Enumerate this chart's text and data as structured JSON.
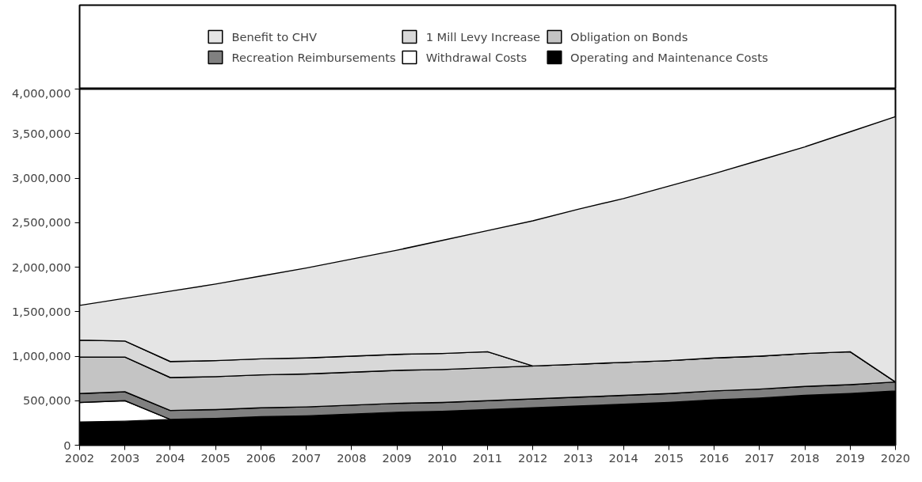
{
  "chart_data": {
    "type": "area",
    "stacked": true,
    "x": [
      2002,
      2003,
      2004,
      2005,
      2006,
      2007,
      2008,
      2009,
      2010,
      2011,
      2012,
      2013,
      2014,
      2015,
      2016,
      2017,
      2018,
      2019,
      2020
    ],
    "series": [
      {
        "name": "Operating and Maintenance Costs",
        "color": "#000000",
        "values": [
          260000,
          270000,
          290000,
          300000,
          320000,
          330000,
          350000,
          370000,
          380000,
          400000,
          420000,
          440000,
          460000,
          480000,
          510000,
          530000,
          560000,
          580000,
          610000
        ]
      },
      {
        "name": "Withdrawal Costs",
        "color": "#ffffff",
        "values": [
          220000,
          230000,
          0,
          0,
          0,
          0,
          0,
          0,
          0,
          0,
          0,
          0,
          0,
          0,
          0,
          0,
          0,
          0,
          0
        ]
      },
      {
        "name": "Recreation Reimbursements",
        "color": "#808080",
        "values": [
          100000,
          100000,
          100000,
          100000,
          100000,
          100000,
          100000,
          100000,
          100000,
          100000,
          100000,
          100000,
          100000,
          100000,
          100000,
          100000,
          100000,
          100000,
          100000
        ]
      },
      {
        "name": "Obligation on Bonds",
        "color": "#c4c4c4",
        "values": [
          410000,
          390000,
          370000,
          370000,
          370000,
          370000,
          370000,
          370000,
          370000,
          370000,
          370000,
          370000,
          370000,
          370000,
          370000,
          370000,
          370000,
          370000,
          0
        ]
      },
      {
        "name": "1 Mill Levy Increase",
        "color": "#d8d8d8",
        "values": [
          190000,
          180000,
          180000,
          180000,
          180000,
          180000,
          180000,
          180000,
          180000,
          180000,
          0,
          0,
          0,
          0,
          0,
          0,
          0,
          0,
          0
        ]
      },
      {
        "name": "Benefit to CHV",
        "color": "#e5e5e5",
        "values": [
          390000,
          480000,
          790000,
          860000,
          930000,
          1010000,
          1090000,
          1170000,
          1270000,
          1360000,
          1630000,
          1740000,
          1840000,
          1960000,
          2070000,
          2200000,
          2320000,
          2470000,
          2980000
        ]
      }
    ],
    "xlim": [
      2002,
      2020
    ],
    "xticks": [
      2002,
      2003,
      2004,
      2005,
      2006,
      2007,
      2008,
      2009,
      2010,
      2011,
      2012,
      2013,
      2014,
      2015,
      2016,
      2017,
      2018,
      2019,
      2020
    ],
    "ylim": [
      0,
      4000000
    ],
    "yticks": [
      {
        "value": 0,
        "label": "0"
      },
      {
        "value": 500000,
        "label": "500,000"
      },
      {
        "value": 1000000,
        "label": "1,000,000"
      },
      {
        "value": 1500000,
        "label": "1,500,000"
      },
      {
        "value": 2000000,
        "label": "2,000,000"
      },
      {
        "value": 2500000,
        "label": "2,500,000"
      },
      {
        "value": 3000000,
        "label": "3,000,000"
      },
      {
        "value": 3500000,
        "label": "3,500,000"
      },
      {
        "value": 4000000,
        "label": "4,000,000"
      }
    ],
    "grid": false,
    "legend": "top"
  }
}
